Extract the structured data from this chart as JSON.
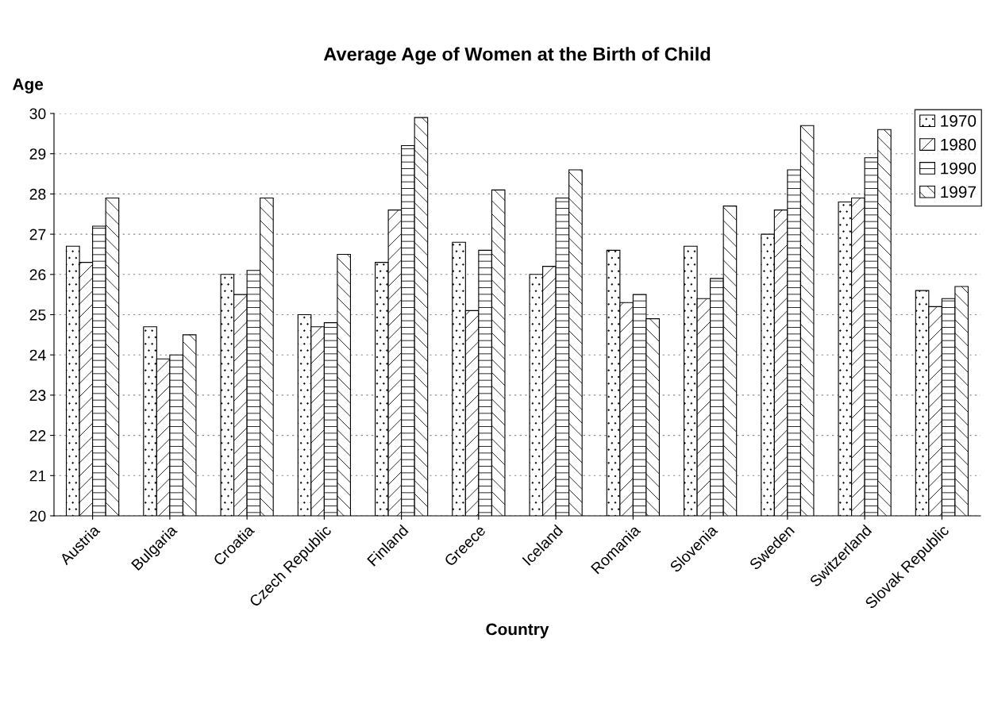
{
  "chart_data": {
    "type": "bar",
    "title": "Average Age of Women at the Birth of Child",
    "xlabel": "Country",
    "ylabel": "Age",
    "categories": [
      "Austria",
      "Bulgaria",
      "Croatia",
      "Czech Republic",
      "Finland",
      "Greece",
      "Iceland",
      "Romania",
      "Slovenia",
      "Sweden",
      "Switzerland",
      "Slovak Republic"
    ],
    "series": [
      {
        "name": "1970",
        "color": "#000000",
        "values": [
          26.7,
          24.7,
          26.0,
          25.0,
          26.3,
          26.8,
          26.0,
          26.6,
          26.7,
          27.0,
          27.8,
          25.6
        ]
      },
      {
        "name": "1980",
        "color": "#000000",
        "values": [
          26.3,
          23.9,
          25.5,
          24.7,
          27.6,
          25.1,
          26.2,
          25.3,
          25.4,
          27.6,
          27.9,
          25.2
        ]
      },
      {
        "name": "1990",
        "color": "#000000",
        "values": [
          27.2,
          24.0,
          26.1,
          24.8,
          29.2,
          26.6,
          27.9,
          25.5,
          25.9,
          28.6,
          28.9,
          25.4
        ]
      },
      {
        "name": "1997",
        "color": "#000000",
        "values": [
          27.9,
          24.5,
          27.9,
          26.5,
          29.9,
          28.1,
          28.6,
          24.9,
          27.7,
          29.7,
          29.6,
          25.7
        ]
      }
    ],
    "ylim": [
      20,
      30
    ],
    "yticks": [
      20,
      21,
      22,
      23,
      24,
      25,
      26,
      27,
      28,
      29,
      30
    ],
    "grid": "y",
    "legend": "top right"
  }
}
